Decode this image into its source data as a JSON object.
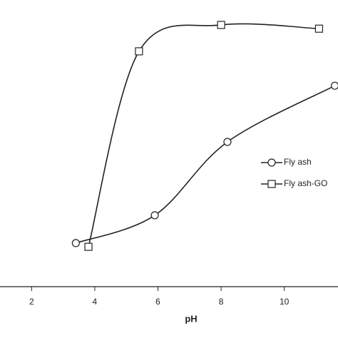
{
  "chart_data": {
    "type": "line",
    "x_label": "pH",
    "series": [
      {
        "name": "Fly ash",
        "color": "#222222",
        "marker": "circle",
        "x": [
          3.4,
          5.9,
          8.2,
          11.6
        ],
        "values": [
          15.2,
          24.9,
          50.5,
          70.1
        ]
      },
      {
        "name": "Fly ash-GO",
        "color": "#222222",
        "marker": "square",
        "x": [
          3.8,
          5.4,
          8.0,
          11.1
        ],
        "values": [
          13.9,
          82.1,
          91.3,
          90.0
        ]
      }
    ],
    "xlim": [
      1,
      11.7
    ],
    "xticks": [
      2,
      4,
      6,
      8,
      10
    ],
    "ylim": [
      0,
      100
    ]
  }
}
